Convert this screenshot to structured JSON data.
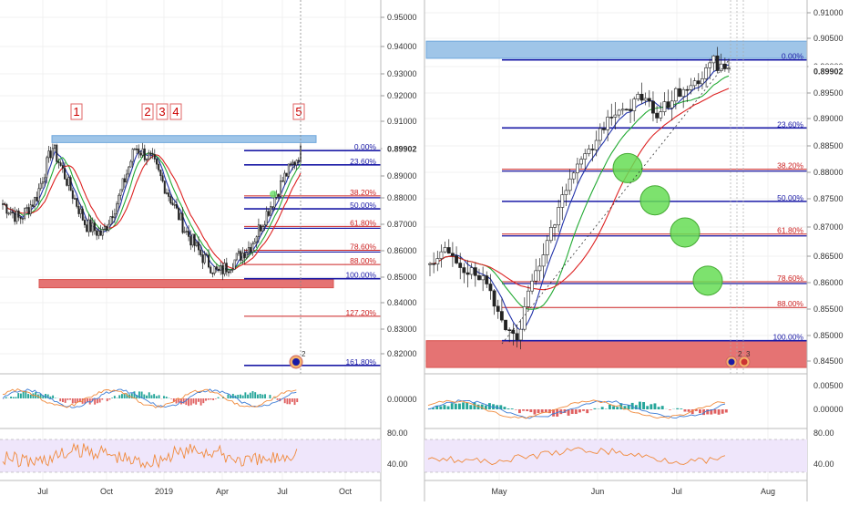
{
  "chart_data": [
    {
      "type": "candlestick",
      "panel": "left",
      "x_ticks": [
        "Jul",
        "Oct",
        "2019",
        "Apr",
        "Jul",
        "Oct"
      ],
      "y_ticks": [
        "0.95000",
        "0.94000",
        "0.93000",
        "0.92000",
        "0.91000",
        "0.90000",
        "0.89000",
        "0.88000",
        "0.87000",
        "0.86000",
        "0.85000",
        "0.84000",
        "0.83000",
        "0.82000"
      ],
      "ylim": [
        0.812,
        0.955
      ],
      "price_label": "0.89902",
      "last_price": 0.89902,
      "wave_labels": [
        "1",
        "2",
        "3",
        "4",
        "5"
      ],
      "resistance_zone": [
        0.9016,
        0.9043
      ],
      "support_zone": [
        0.8455,
        0.8487
      ],
      "fib_levels": [
        {
          "label": "0.00%",
          "value": 0.8985,
          "color": "#1a1aa6"
        },
        {
          "label": "23.60%",
          "value": 0.893,
          "color": "#1a1aa6"
        },
        {
          "label": "38.20%",
          "value": 0.881,
          "color": "#cc2222"
        },
        {
          "label": "50.00%",
          "value": 0.876,
          "color": "#1a1aa6"
        },
        {
          "label": "61.80%",
          "value": 0.8692,
          "color": "#cc2222"
        },
        {
          "label": "78.60%",
          "value": 0.86,
          "color": "#cc2222"
        },
        {
          "label": "88.00%",
          "value": 0.8545,
          "color": "#cc2222"
        },
        {
          "label": "100.00%",
          "value": 0.849,
          "color": "#1a1aa6"
        },
        {
          "label": "127.20%",
          "value": 0.8345,
          "color": "#cc2222"
        },
        {
          "label": "161.80%",
          "value": 0.8155,
          "color": "#1a1aa6"
        }
      ],
      "macd_ticks": [
        "0.00000"
      ],
      "rsi_ticks": [
        "80.00",
        "40.00"
      ]
    },
    {
      "type": "candlestick",
      "panel": "right",
      "x_ticks": [
        "May",
        "Jun",
        "Jul",
        "Aug"
      ],
      "y_ticks": [
        "0.91000",
        "0.90500",
        "0.90000",
        "0.89500",
        "0.89000",
        "0.88500",
        "0.88000",
        "0.87500",
        "0.87000",
        "0.86500",
        "0.86000",
        "0.85500",
        "0.85000",
        "0.84500"
      ],
      "ylim": [
        0.8435,
        0.9125
      ],
      "price_label": "0.89902",
      "last_price": 0.89902,
      "resistance_zone": [
        0.9015,
        0.9047
      ],
      "support_zone": [
        0.8438,
        0.8488
      ],
      "fib_levels": [
        {
          "label": "0.00%",
          "value": 0.9012,
          "color": "#1a1aa6"
        },
        {
          "label": "23.60%",
          "value": 0.8885,
          "color": "#1a1aa6"
        },
        {
          "label": "38.20%",
          "value": 0.8808,
          "color": "#cc2222"
        },
        {
          "label": "50.00%",
          "value": 0.8748,
          "color": "#1a1aa6"
        },
        {
          "label": "61.80%",
          "value": 0.8687,
          "color": "#cc2222"
        },
        {
          "label": "78.60%",
          "value": 0.8598,
          "color": "#cc2222"
        },
        {
          "label": "88.00%",
          "value": 0.855,
          "color": "#cc2222"
        },
        {
          "label": "100.00%",
          "value": 0.8488,
          "color": "#1a1aa6"
        }
      ],
      "bounce_zones": [
        0.881,
        0.875,
        0.869,
        0.86
      ],
      "macd_ticks": [
        "0.00500",
        "0.00000"
      ],
      "rsi_ticks": [
        "80.00",
        "40.00"
      ]
    }
  ]
}
